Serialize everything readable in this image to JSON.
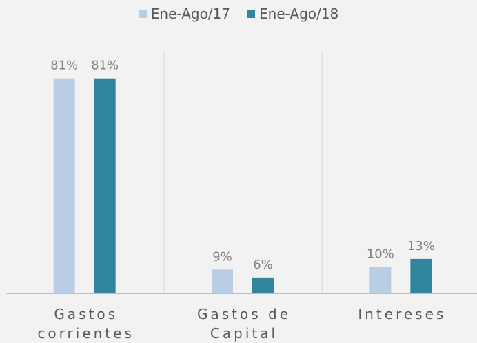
{
  "chart_data": {
    "type": "bar",
    "categories": [
      "Gastos corrientes",
      "Gastos de Capital",
      "Intereses"
    ],
    "series": [
      {
        "name": "Ene-Ago/17",
        "color": "#b9cde5",
        "values": [
          81,
          9,
          10
        ],
        "value_labels": [
          "81%",
          "9%",
          "10%"
        ]
      },
      {
        "name": "Ene-Ago/18",
        "color": "#31859c",
        "values": [
          81,
          6,
          13
        ],
        "value_labels": [
          "81%",
          "6%",
          "13%"
        ]
      }
    ],
    "ylim": [
      0,
      90
    ],
    "legend": "top"
  }
}
